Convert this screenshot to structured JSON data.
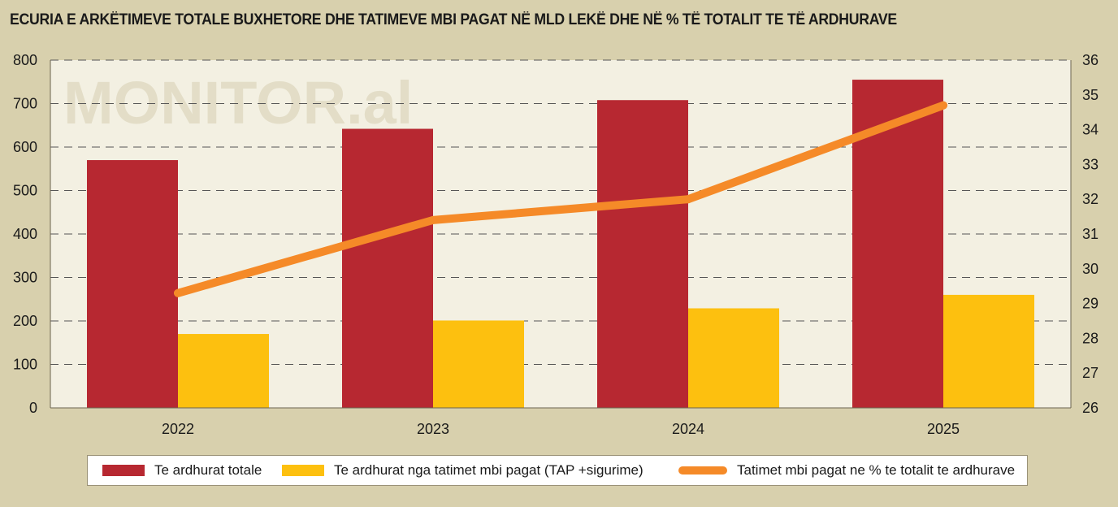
{
  "chart_data": {
    "type": "bar",
    "title": "ECURIA E ARKËTIMEVE TOTALE BUXHETORE DHE TATIMEVE MBI PAGAT NË MLD LEKË DHE NË % TË TOTALIT TE TË ARDHURAVE",
    "watermark": "MONITOR.al",
    "categories": [
      "2022",
      "2023",
      "2024",
      "2025"
    ],
    "series": [
      {
        "name": "Te ardhurat totale",
        "type": "bar",
        "axis": "left",
        "color": "#b72831",
        "values": [
          570,
          642,
          708,
          755
        ]
      },
      {
        "name": "Te ardhurat nga tatimet mbi pagat (TAP +sigurime)",
        "type": "bar",
        "axis": "left",
        "color": "#fdc00f",
        "values": [
          170,
          201,
          229,
          260
        ]
      },
      {
        "name": "Tatimet mbi pagat ne % te totalit te ardhurave",
        "type": "line",
        "axis": "right",
        "color": "#f58a28",
        "values": [
          29.3,
          31.4,
          32.0,
          34.7
        ]
      }
    ],
    "y_left": {
      "min": 0,
      "max": 800,
      "ticks": [
        "0",
        "100",
        "200",
        "300",
        "400",
        "500",
        "600",
        "700",
        "800"
      ]
    },
    "y_right": {
      "min": 26,
      "max": 36,
      "ticks": [
        "26",
        "27",
        "28",
        "29",
        "30",
        "31",
        "32",
        "33",
        "34",
        "35",
        "36"
      ]
    },
    "grid": "dashed horizontal",
    "legend_position": "bottom",
    "colors": {
      "background": "#d8d0ad",
      "plot_background": "#f3f0e2",
      "grid": "#555555"
    }
  }
}
